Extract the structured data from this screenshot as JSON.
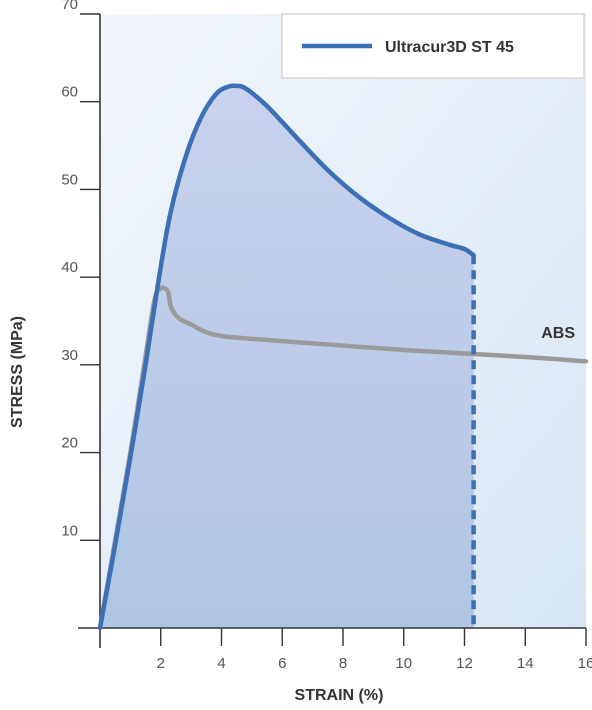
{
  "chart_data": {
    "type": "line",
    "xlabel": "STRAIN (%)",
    "ylabel": "STRESS (MPa)",
    "xlim": [
      0,
      16
    ],
    "ylim": [
      0,
      70
    ],
    "x_ticks": [
      2,
      4,
      6,
      8,
      10,
      12,
      14,
      16
    ],
    "y_ticks": [
      10,
      20,
      30,
      40,
      50,
      60,
      70
    ],
    "grid": false,
    "legend_position": "top-right",
    "series": [
      {
        "name": "Ultracur3D ST 45",
        "color": "#3b6fb6",
        "fill": "#b9c8e6",
        "x": [
          0,
          0.5,
          1.0,
          1.5,
          1.9,
          2.3,
          2.8,
          3.3,
          3.8,
          4.2,
          4.5,
          4.8,
          5.5,
          6.5,
          7.5,
          8.5,
          9.5,
          10.5,
          11.5,
          12.0,
          12.3
        ],
        "y": [
          0,
          9.5,
          19.5,
          30,
          39,
          47,
          53.5,
          58,
          60.8,
          61.7,
          61.8,
          61.5,
          59.5,
          55.8,
          52.2,
          49.2,
          46.8,
          44.9,
          43.7,
          43.2,
          42.5
        ],
        "break_strain": 12.3
      },
      {
        "name": "ABS",
        "color": "#9a9a9a",
        "x": [
          0,
          0.5,
          1.0,
          1.5,
          1.8,
          2.0,
          2.15,
          2.25,
          2.35,
          2.6,
          3.0,
          3.5,
          4.0,
          4.5,
          6,
          8,
          10,
          12,
          14,
          16
        ],
        "y": [
          0,
          10,
          20,
          31,
          37.5,
          38.7,
          38.7,
          38.2,
          36.5,
          35.3,
          34.6,
          33.7,
          33.3,
          33.1,
          32.7,
          32.2,
          31.7,
          31.3,
          30.9,
          30.4
        ]
      }
    ],
    "annotations": [
      {
        "text": "ABS",
        "series": "ABS"
      }
    ]
  }
}
